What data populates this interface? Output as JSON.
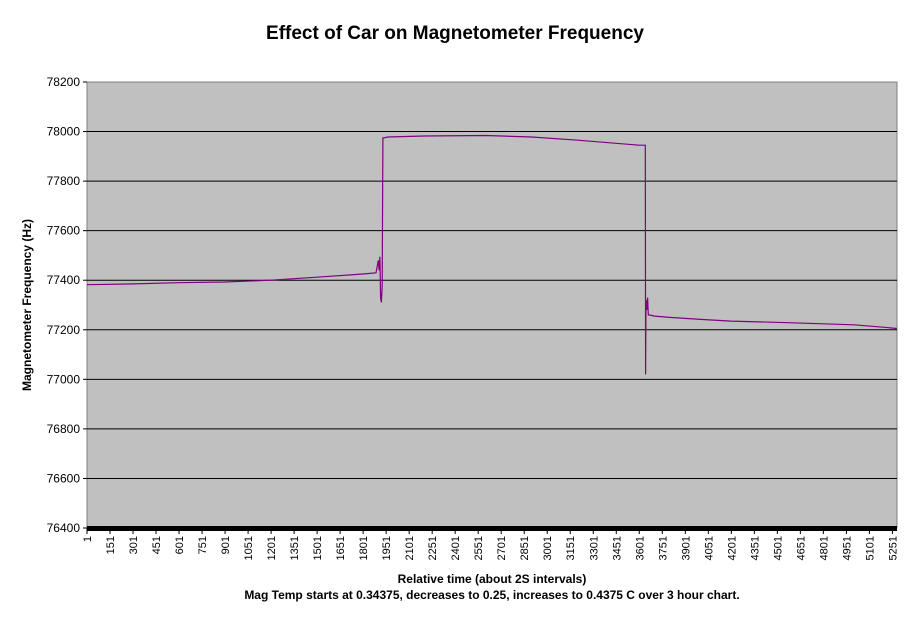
{
  "chart_data": {
    "type": "line",
    "title": "Effect of Car on Magnetometer Frequency",
    "xlabel": "Relative time (about 2S intervals)",
    "ylabel": "Magnetometer Frequency (Hz)",
    "note": "Mag Temp starts at 0.34375, decreases to 0.25, increases to 0.4375 C over 3 hour chart.",
    "ylim": [
      76400,
      78200
    ],
    "xlim": [
      1,
      5281
    ],
    "yticks": [
      76400,
      76600,
      76800,
      77000,
      77200,
      77400,
      77600,
      77800,
      78000,
      78200
    ],
    "xticks": [
      1,
      151,
      301,
      451,
      601,
      751,
      901,
      1051,
      1201,
      1351,
      1501,
      1651,
      1801,
      1951,
      2101,
      2251,
      2401,
      2551,
      2701,
      2851,
      3001,
      3151,
      3301,
      3451,
      3601,
      3751,
      3901,
      4051,
      4201,
      4351,
      4501,
      4651,
      4801,
      4951,
      5101,
      5251
    ],
    "grid": true,
    "colors": {
      "plot_background": "#c0c0c0",
      "line": "#800080",
      "gridline": "#000000"
    },
    "series": [
      {
        "x": [
          1,
          300,
          600,
          900,
          1200,
          1500,
          1800,
          1885,
          1900,
          1905,
          1910,
          1915,
          1920,
          1925,
          1930,
          1940,
          1960,
          2200,
          2600,
          2900,
          3200,
          3600,
          3640,
          3642,
          3645,
          3650,
          3655,
          3660,
          3680,
          3700,
          3800,
          4000,
          4200,
          4600,
          5000,
          5200,
          5280
        ],
        "y": [
          77382,
          77385,
          77390,
          77393,
          77400,
          77412,
          77425,
          77430,
          77480,
          77440,
          77495,
          77330,
          77310,
          77380,
          77975,
          77975,
          77978,
          77982,
          77984,
          77978,
          77965,
          77945,
          77945,
          77020,
          77320,
          77280,
          77330,
          77260,
          77258,
          77255,
          77250,
          77242,
          77235,
          77228,
          77220,
          77210,
          77205
        ]
      }
    ]
  }
}
